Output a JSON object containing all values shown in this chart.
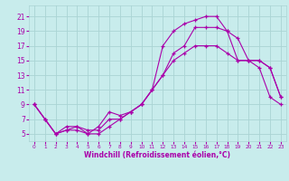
{
  "xlabel": "Windchill (Refroidissement éolien,°C)",
  "background_color": "#c8ecec",
  "grid_color": "#aad4d4",
  "line_color": "#aa00aa",
  "xlim": [
    -0.5,
    23.5
  ],
  "ylim": [
    4,
    22.5
  ],
  "xticks": [
    0,
    1,
    2,
    3,
    4,
    5,
    6,
    7,
    8,
    9,
    10,
    11,
    12,
    13,
    14,
    15,
    16,
    17,
    18,
    19,
    20,
    21,
    22,
    23
  ],
  "yticks": [
    5,
    7,
    9,
    11,
    13,
    15,
    17,
    19,
    21
  ],
  "line1_x": [
    0,
    1,
    2,
    3,
    4,
    5,
    6,
    7,
    8,
    9,
    10,
    11,
    12,
    13,
    14,
    15,
    16,
    17,
    18,
    19,
    20,
    21,
    22,
    23
  ],
  "line1_y": [
    9,
    7,
    5,
    6,
    6,
    5,
    5,
    6,
    7,
    8,
    9,
    11,
    13,
    15,
    16,
    17,
    17,
    17,
    16,
    15,
    15,
    14,
    10,
    9
  ],
  "line2_x": [
    0,
    1,
    2,
    3,
    4,
    5,
    6,
    7,
    8,
    9,
    10,
    11,
    12,
    13,
    14,
    15,
    16,
    17,
    18,
    19,
    20,
    21,
    22,
    23
  ],
  "line2_y": [
    9,
    7,
    5,
    5.5,
    6,
    5.5,
    5.5,
    7,
    7,
    8,
    9,
    11,
    13,
    16,
    17,
    19.5,
    19.5,
    19.5,
    19,
    15,
    15,
    15,
    14,
    10
  ],
  "line3_x": [
    0,
    1,
    2,
    3,
    4,
    5,
    6,
    7,
    8,
    9,
    10,
    11,
    12,
    13,
    14,
    15,
    16,
    17,
    18,
    19,
    20,
    21,
    22,
    23
  ],
  "line3_y": [
    9,
    7,
    5,
    5.5,
    5.5,
    5,
    6,
    8,
    7.5,
    8,
    9,
    11,
    17,
    19,
    20,
    20.5,
    21,
    21,
    19,
    18,
    15,
    15,
    14,
    10
  ]
}
